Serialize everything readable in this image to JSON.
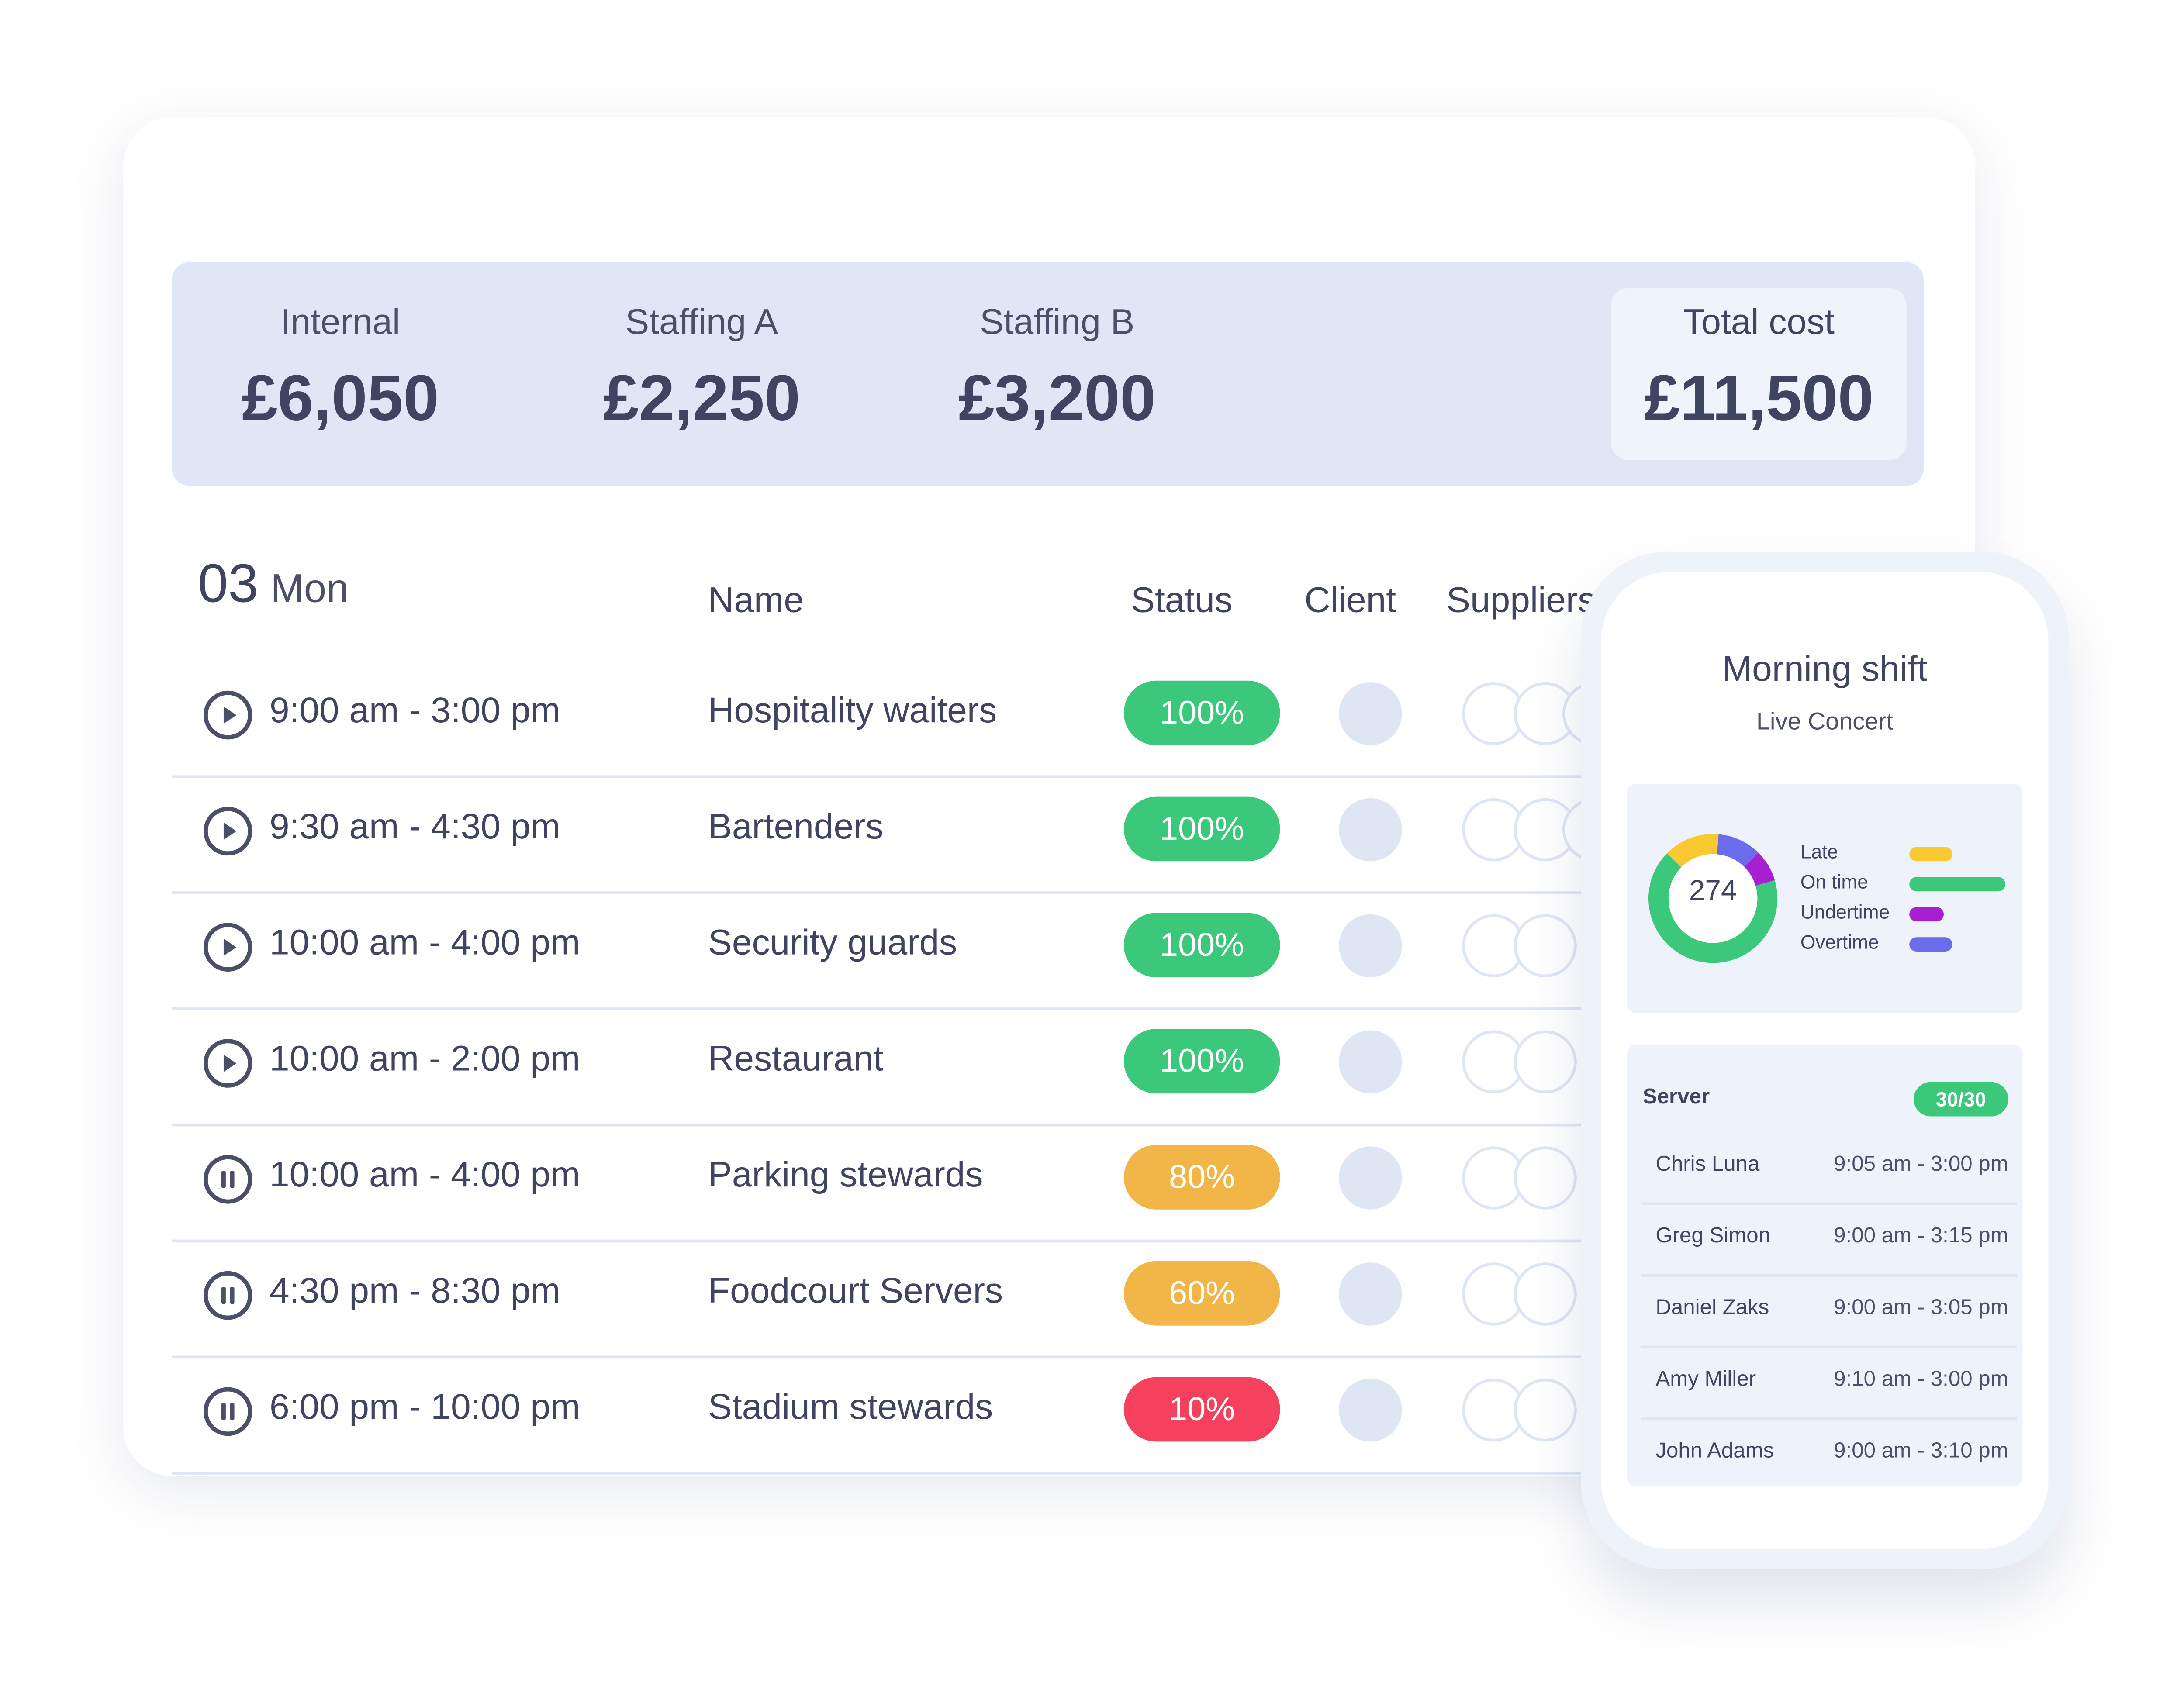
{
  "summary": {
    "items": [
      {
        "label": "Internal",
        "value": "£6,050"
      },
      {
        "label": "Staffing A",
        "value": "£2,250"
      },
      {
        "label": "Staffing B",
        "value": "£3,200"
      }
    ],
    "total": {
      "label": "Total cost",
      "value": "£11,500"
    }
  },
  "schedule": {
    "day_number": "03",
    "day_name": "Mon",
    "columns": {
      "name": "Name",
      "status": "Status",
      "client": "Client",
      "suppliers": "Suppliers"
    },
    "rows": [
      {
        "icon": "play-icon",
        "time": "9:00 am - 3:00 pm",
        "name": "Hospitality waiters",
        "status": "100%",
        "status_color": "#3cc87b"
      },
      {
        "icon": "play-icon",
        "time": "9:30 am - 4:30 pm",
        "name": "Bartenders",
        "status": "100%",
        "status_color": "#3cc87b"
      },
      {
        "icon": "play-icon",
        "time": "10:00 am - 4:00 pm",
        "name": "Security guards",
        "status": "100%",
        "status_color": "#3cc87b"
      },
      {
        "icon": "play-icon",
        "time": "10:00 am - 2:00 pm",
        "name": "Restaurant",
        "status": "100%",
        "status_color": "#3cc87b"
      },
      {
        "icon": "pause-icon",
        "time": "10:00 am - 4:00 pm",
        "name": "Parking stewards",
        "status": "80%",
        "status_color": "#f2b547"
      },
      {
        "icon": "pause-icon",
        "time": "4:30 pm - 8:30 pm",
        "name": "Foodcourt Servers",
        "status": "60%",
        "status_color": "#f2b547"
      },
      {
        "icon": "pause-icon",
        "time": "6:00 pm - 10:00 pm",
        "name": "Stadium stewards",
        "status": "10%",
        "status_color": "#f5415d"
      }
    ]
  },
  "phone": {
    "title": "Morning shift",
    "subtitle": "Live Concert",
    "chart_data": {
      "type": "pie",
      "center_value": "274",
      "series": [
        {
          "name": "Late",
          "color": "#f9c932",
          "fraction": 0.14
        },
        {
          "name": "On time",
          "color": "#3cc87b",
          "fraction": 0.67
        },
        {
          "name": "Undertime",
          "color": "#a620d1",
          "fraction": 0.08
        },
        {
          "name": "Overtime",
          "color": "#6a6cec",
          "fraction": 0.11
        }
      ]
    },
    "server": {
      "label": "Server",
      "badge": "30/30",
      "rows": [
        {
          "name": "Chris Luna",
          "time": "9:05 am - 3:00 pm"
        },
        {
          "name": "Greg Simon",
          "time": "9:00 am - 3:15 pm"
        },
        {
          "name": "Daniel Zaks",
          "time": "9:00 am - 3:05 pm"
        },
        {
          "name": "Amy Miller",
          "time": "9:10 am - 3:00 pm"
        },
        {
          "name": "John Adams",
          "time": "9:00 am - 3:10 pm"
        }
      ]
    }
  }
}
